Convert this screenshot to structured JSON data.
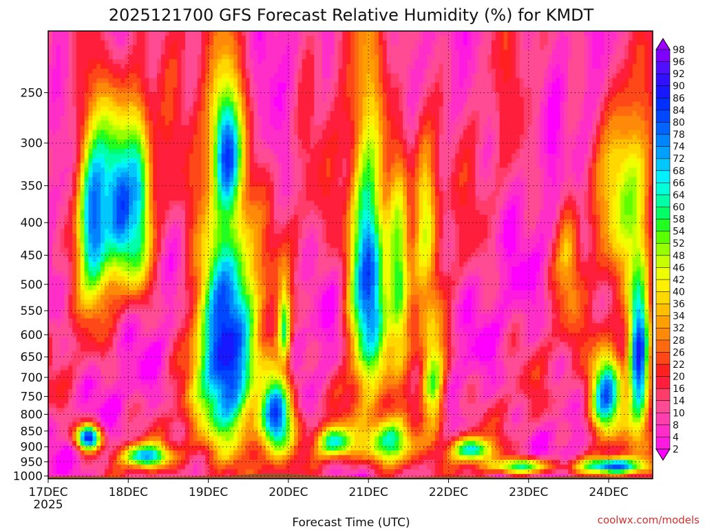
{
  "chart_data": {
    "type": "heatmap",
    "title": "2025121700 GFS Forecast Relative Humidity (%) for KMDT",
    "xlabel": "Forecast Time (UTC)",
    "ylabel": "",
    "credit": "coolwx.com/models",
    "x_ticks": [
      "17DEC",
      "18DEC",
      "19DEC",
      "20DEC",
      "21DEC",
      "22DEC",
      "23DEC",
      "24DEC"
    ],
    "x_year": "2025",
    "x_range_days": [
      0,
      7.55
    ],
    "y_ticks": [
      250,
      300,
      350,
      400,
      450,
      500,
      550,
      600,
      650,
      700,
      750,
      800,
      850,
      900,
      950,
      1000
    ],
    "y_range_hPa": [
      200,
      1010
    ],
    "y_scale": "log",
    "grid": true,
    "colorbar": {
      "levels": [
        2,
        4,
        8,
        10,
        14,
        16,
        20,
        22,
        26,
        28,
        32,
        34,
        36,
        40,
        42,
        46,
        48,
        52,
        54,
        58,
        60,
        64,
        66,
        68,
        72,
        74,
        78,
        80,
        84,
        86,
        90,
        92,
        96,
        98
      ],
      "colors": [
        "#ff00ff",
        "#ff1ae0",
        "#ff2ec8",
        "#ff3fae",
        "#ff4a94",
        "#ff3c6a",
        "#ff1f3c",
        "#ff2020",
        "#ff4818",
        "#ff6a10",
        "#ff8a0a",
        "#ffa000",
        "#ffbe00",
        "#ffd800",
        "#fff000",
        "#eeff00",
        "#c8ff00",
        "#96ff00",
        "#5cff00",
        "#20ff20",
        "#00ff66",
        "#00ffa6",
        "#00ffd8",
        "#00f0ff",
        "#00c8ff",
        "#00a0ff",
        "#0084ff",
        "#0064ff",
        "#0048ff",
        "#0030ff",
        "#1818ff",
        "#3010ff",
        "#5010ff",
        "#8000ff",
        "#a000ff"
      ]
    },
    "ground_color": "#a0522d",
    "rh_features": [
      {
        "t0": 0.3,
        "t1": 0.85,
        "p_top": 230,
        "p_bot": 560,
        "rh": 78
      },
      {
        "t0": 0.55,
        "t1": 1.25,
        "p_top": 240,
        "p_bot": 500,
        "rh": 82
      },
      {
        "t0": 0.9,
        "t1": 1.3,
        "p_top": 250,
        "p_bot": 520,
        "rh": 70
      },
      {
        "t0": 0.3,
        "t1": 0.7,
        "p_top": 820,
        "p_bot": 920,
        "rh": 88
      },
      {
        "t0": 0.85,
        "t1": 1.6,
        "p_top": 880,
        "p_bot": 980,
        "rh": 74
      },
      {
        "t0": 1.75,
        "t1": 2.7,
        "p_top": 270,
        "p_bot": 990,
        "rh": 90
      },
      {
        "t0": 2.0,
        "t1": 2.45,
        "p_top": 220,
        "p_bot": 400,
        "rh": 84
      },
      {
        "t0": 2.6,
        "t1": 3.1,
        "p_top": 650,
        "p_bot": 960,
        "rh": 86
      },
      {
        "t0": 2.85,
        "t1": 3.05,
        "p_top": 470,
        "p_bot": 700,
        "rh": 56
      },
      {
        "t0": 3.3,
        "t1": 3.9,
        "p_top": 820,
        "p_bot": 950,
        "rh": 66
      },
      {
        "t0": 3.7,
        "t1": 4.3,
        "p_top": 215,
        "p_bot": 780,
        "rh": 84
      },
      {
        "t0": 4.2,
        "t1": 4.55,
        "p_top": 270,
        "p_bot": 720,
        "rh": 58
      },
      {
        "t0": 3.85,
        "t1": 4.7,
        "p_top": 780,
        "p_bot": 990,
        "rh": 62
      },
      {
        "t0": 4.5,
        "t1": 4.9,
        "p_top": 230,
        "p_bot": 550,
        "rh": 44
      },
      {
        "t0": 4.6,
        "t1": 5.0,
        "p_top": 500,
        "p_bot": 900,
        "rh": 52
      },
      {
        "t0": 5.0,
        "t1": 5.6,
        "p_top": 860,
        "p_bot": 960,
        "rh": 70
      },
      {
        "t0": 5.4,
        "t1": 6.4,
        "p_top": 930,
        "p_bot": 1000,
        "rh": 60
      },
      {
        "t0": 6.8,
        "t1": 7.55,
        "p_top": 220,
        "p_bot": 500,
        "rh": 48
      },
      {
        "t0": 7.2,
        "t1": 7.55,
        "p_top": 380,
        "p_bot": 900,
        "rh": 86
      },
      {
        "t0": 6.7,
        "t1": 7.25,
        "p_top": 600,
        "p_bot": 900,
        "rh": 78
      },
      {
        "t0": 6.55,
        "t1": 7.55,
        "p_top": 930,
        "p_bot": 1000,
        "rh": 82
      },
      {
        "t0": 6.3,
        "t1": 6.7,
        "p_top": 330,
        "p_bot": 600,
        "rh": 36
      }
    ]
  }
}
